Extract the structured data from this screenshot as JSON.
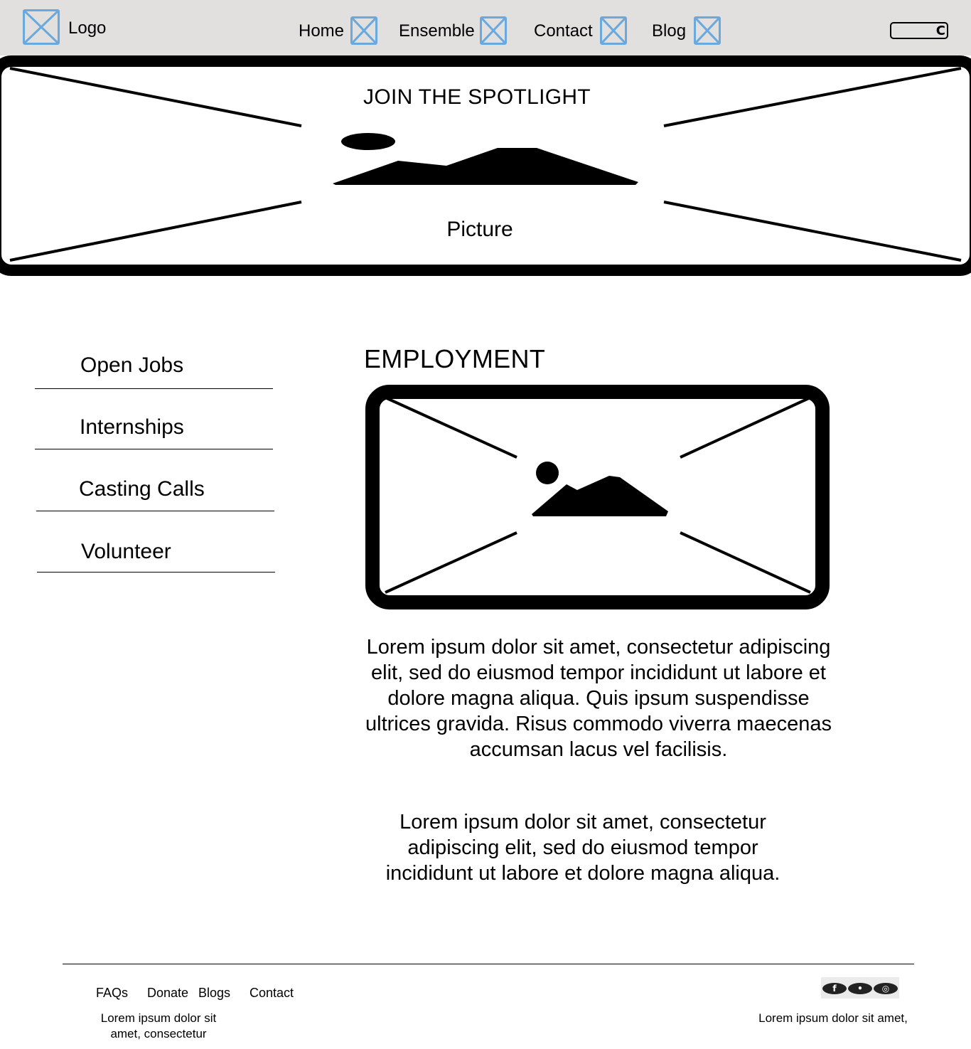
{
  "header": {
    "logo_label": "Logo",
    "nav": [
      {
        "label": "Home"
      },
      {
        "label": "Ensemble"
      },
      {
        "label": "Contact"
      },
      {
        "label": "Blog"
      }
    ],
    "search_icon": "search-icon"
  },
  "hero": {
    "title": "JOIN THE SPOTLIGHT",
    "caption": "Picture"
  },
  "sidebar": {
    "items": [
      {
        "label": "Open Jobs"
      },
      {
        "label": "Internships"
      },
      {
        "label": "Casting Calls"
      },
      {
        "label": "Volunteer"
      }
    ]
  },
  "main": {
    "title": "EMPLOYMENT",
    "paragraph_1": "Lorem ipsum dolor sit amet, consectetur adipiscing elit, sed do eiusmod tempor incididunt ut labore et dolore magna aliqua. Quis ipsum suspendisse ultrices gravida. Risus commodo viverra maecenas accumsan lacus vel facilisis.",
    "paragraph_2": "Lorem ipsum dolor sit amet, consectetur adipiscing elit, sed do eiusmod tempor incididunt ut labore et dolore magna aliqua."
  },
  "footer": {
    "links": [
      {
        "label": "FAQs"
      },
      {
        "label": "Donate"
      },
      {
        "label": "Blogs"
      },
      {
        "label": "Contact"
      }
    ],
    "left_text": "Lorem ipsum dolor sit amet, consectetur",
    "right_text": "Lorem ipsum dolor sit amet,",
    "social_icons": [
      "facebook-icon",
      "twitter-icon",
      "instagram-icon"
    ]
  },
  "colors": {
    "header_bg": "#e1e0df",
    "placeholder_icon": "#6aa9dd"
  }
}
